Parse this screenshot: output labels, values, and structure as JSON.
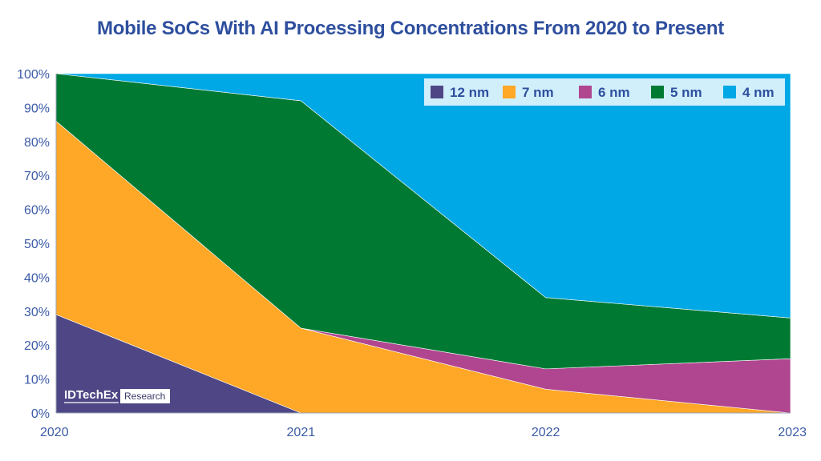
{
  "chart_data": {
    "type": "area",
    "stacked": true,
    "title": "Mobile SoCs With AI Processing Concentrations From 2020 to Present",
    "x": [
      "2020",
      "2021",
      "2022",
      "2023"
    ],
    "ylim": [
      0,
      100
    ],
    "yticks": [
      "0%",
      "10%",
      "20%",
      "30%",
      "40%",
      "50%",
      "60%",
      "70%",
      "80%",
      "90%",
      "100%"
    ],
    "series": [
      {
        "name": "12 nm",
        "color": "#4f4785",
        "values": [
          29,
          0,
          0,
          0
        ]
      },
      {
        "name": "7 nm",
        "color": "#ffa726",
        "values": [
          57,
          25,
          7,
          0
        ]
      },
      {
        "name": "6 nm",
        "color": "#b0468f",
        "values": [
          0,
          0,
          6,
          16
        ]
      },
      {
        "name": "5 nm",
        "color": "#007a33",
        "values": [
          14,
          67,
          21,
          12
        ]
      },
      {
        "name": "4 nm",
        "color": "#00a8e6",
        "values": [
          0,
          8,
          66,
          72
        ]
      }
    ],
    "legend_position": "top-right",
    "grid": false
  },
  "logo": {
    "brand": "IDTechEx",
    "sub": "Research"
  }
}
